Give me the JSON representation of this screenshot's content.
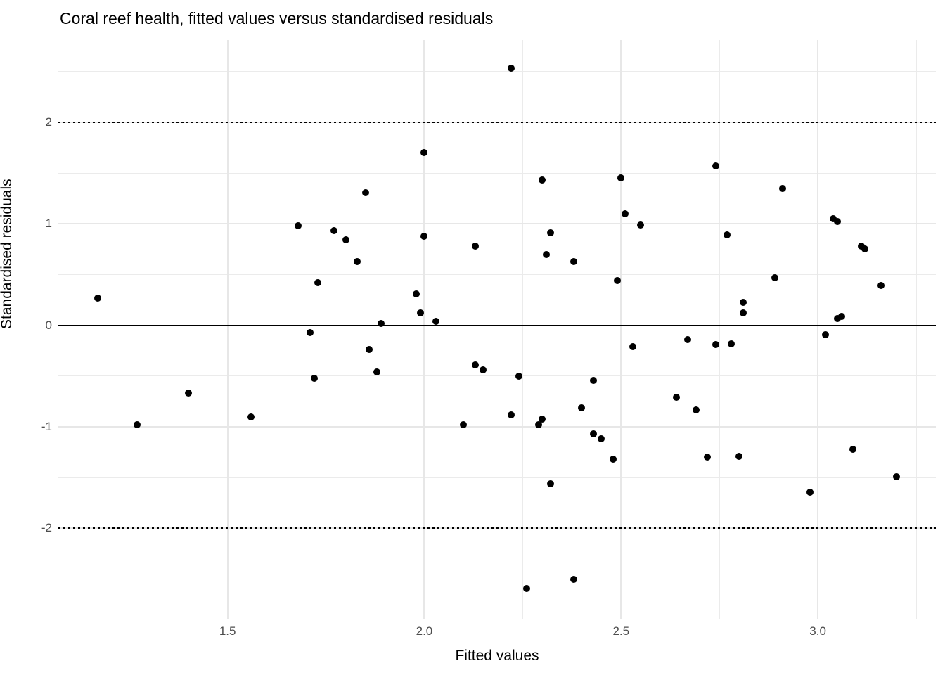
{
  "title": "Coral reef health, fitted values versus standardised residuals",
  "chart_data": {
    "type": "scatter",
    "title": "Coral reef health, fitted values versus standardised residuals",
    "xlabel": "Fitted values",
    "ylabel": "Standardised residuals",
    "xlim": [
      1.07,
      3.3
    ],
    "ylim": [
      -2.89,
      2.81
    ],
    "x_ticks": [
      1.5,
      2.0,
      2.5,
      3.0
    ],
    "x_tick_labels": [
      "1.5",
      "2.0",
      "2.5",
      "3.0"
    ],
    "y_ticks": [
      2,
      1,
      0,
      -1,
      -2
    ],
    "y_tick_labels": [
      "2",
      "1",
      "0",
      "-1",
      "-2"
    ],
    "x_minor_gridlines": [
      1.25,
      1.75,
      2.25,
      2.75,
      3.25
    ],
    "y_minor_gridlines": [
      2.5,
      1.5,
      0.5,
      -0.5,
      -1.5,
      -2.5
    ],
    "reference_lines": [
      {
        "y": 0,
        "style": "solid"
      },
      {
        "y": 2,
        "style": "dotted"
      },
      {
        "y": -2,
        "style": "dotted"
      }
    ],
    "grid": true,
    "legend": "none",
    "colors": {
      "point": "#000000",
      "grid": "#ebebeb",
      "tick_label": "#4d4d4d",
      "text": "#000000",
      "background": "#ffffff",
      "reference_line": "#000000"
    },
    "points": [
      [
        1.17,
        0.27
      ],
      [
        1.27,
        -0.98
      ],
      [
        1.4,
        -0.67
      ],
      [
        1.56,
        -0.9
      ],
      [
        1.68,
        0.98
      ],
      [
        1.71,
        -0.07
      ],
      [
        1.72,
        -0.52
      ],
      [
        1.73,
        0.42
      ],
      [
        1.77,
        0.93
      ],
      [
        1.8,
        0.84
      ],
      [
        1.83,
        0.63
      ],
      [
        1.85,
        1.31
      ],
      [
        1.86,
        -0.24
      ],
      [
        1.88,
        -0.46
      ],
      [
        1.89,
        0.02
      ],
      [
        1.98,
        0.31
      ],
      [
        1.99,
        0.12
      ],
      [
        2.0,
        1.7
      ],
      [
        2.0,
        0.88
      ],
      [
        2.03,
        0.04
      ],
      [
        2.1,
        -0.98
      ],
      [
        2.13,
        0.78
      ],
      [
        2.13,
        -0.39
      ],
      [
        2.15,
        -0.44
      ],
      [
        2.22,
        2.53
      ],
      [
        2.22,
        -0.88
      ],
      [
        2.24,
        -0.5
      ],
      [
        2.26,
        -2.59
      ],
      [
        2.29,
        -0.98
      ],
      [
        2.3,
        1.43
      ],
      [
        2.3,
        -0.92
      ],
      [
        2.31,
        0.7
      ],
      [
        2.32,
        0.91
      ],
      [
        2.32,
        -1.56
      ],
      [
        2.38,
        0.63
      ],
      [
        2.38,
        -2.5
      ],
      [
        2.4,
        -0.81
      ],
      [
        2.43,
        -0.54
      ],
      [
        2.43,
        -1.07
      ],
      [
        2.45,
        -1.12
      ],
      [
        2.48,
        -1.32
      ],
      [
        2.49,
        0.44
      ],
      [
        2.5,
        1.45
      ],
      [
        2.51,
        1.1
      ],
      [
        2.53,
        -0.21
      ],
      [
        2.55,
        0.99
      ],
      [
        2.64,
        -0.71
      ],
      [
        2.67,
        -0.14
      ],
      [
        2.69,
        -0.83
      ],
      [
        2.72,
        -1.3
      ],
      [
        2.74,
        1.57
      ],
      [
        2.74,
        -0.19
      ],
      [
        2.77,
        0.89
      ],
      [
        2.78,
        -0.18
      ],
      [
        2.8,
        -1.29
      ],
      [
        2.81,
        0.23
      ],
      [
        2.81,
        0.12
      ],
      [
        2.89,
        0.47
      ],
      [
        2.91,
        1.35
      ],
      [
        2.98,
        -1.64
      ],
      [
        3.02,
        -0.09
      ],
      [
        3.04,
        1.05
      ],
      [
        3.05,
        1.02
      ],
      [
        3.05,
        0.07
      ],
      [
        3.06,
        0.09
      ],
      [
        3.09,
        -1.22
      ],
      [
        3.11,
        0.78
      ],
      [
        3.12,
        0.75
      ],
      [
        3.16,
        0.39
      ],
      [
        3.2,
        -1.49
      ]
    ]
  }
}
